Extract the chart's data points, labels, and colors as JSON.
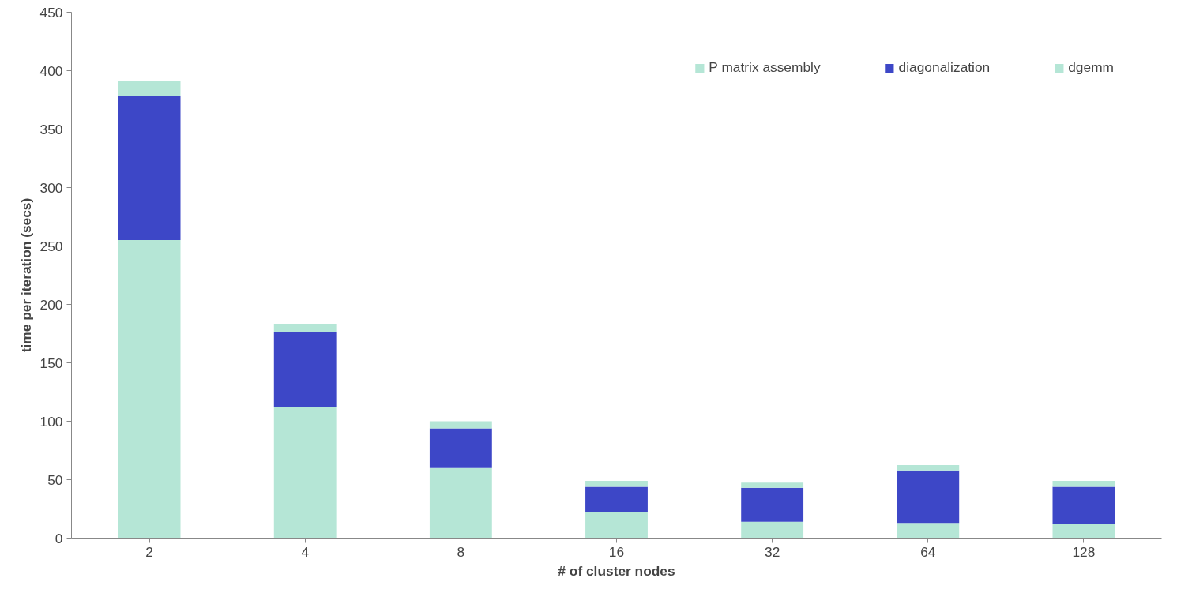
{
  "chart_data": {
    "type": "bar",
    "stacked": true,
    "xlabel": "# of cluster nodes",
    "ylabel": "time per iteration (secs)",
    "categories": [
      "2",
      "4",
      "8",
      "16",
      "32",
      "64",
      "128"
    ],
    "series": [
      {
        "name": "P matrix assembly",
        "color": "#b5e6d6",
        "values": [
          255,
          112,
          60,
          22,
          14,
          13,
          12
        ]
      },
      {
        "name": "diagonalization",
        "color": "#3d47c7",
        "values": [
          123.5,
          64,
          34,
          22,
          29,
          45,
          32
        ]
      },
      {
        "name": "dgemm",
        "color": "#b5e6d6",
        "values": [
          12.5,
          7.5,
          6,
          5,
          4.5,
          4.5,
          5
        ]
      }
    ],
    "ylim": [
      0,
      450
    ],
    "yticks": [
      0,
      50,
      100,
      150,
      200,
      250,
      300,
      350,
      400,
      450
    ],
    "grid": false,
    "legend": "top right"
  }
}
